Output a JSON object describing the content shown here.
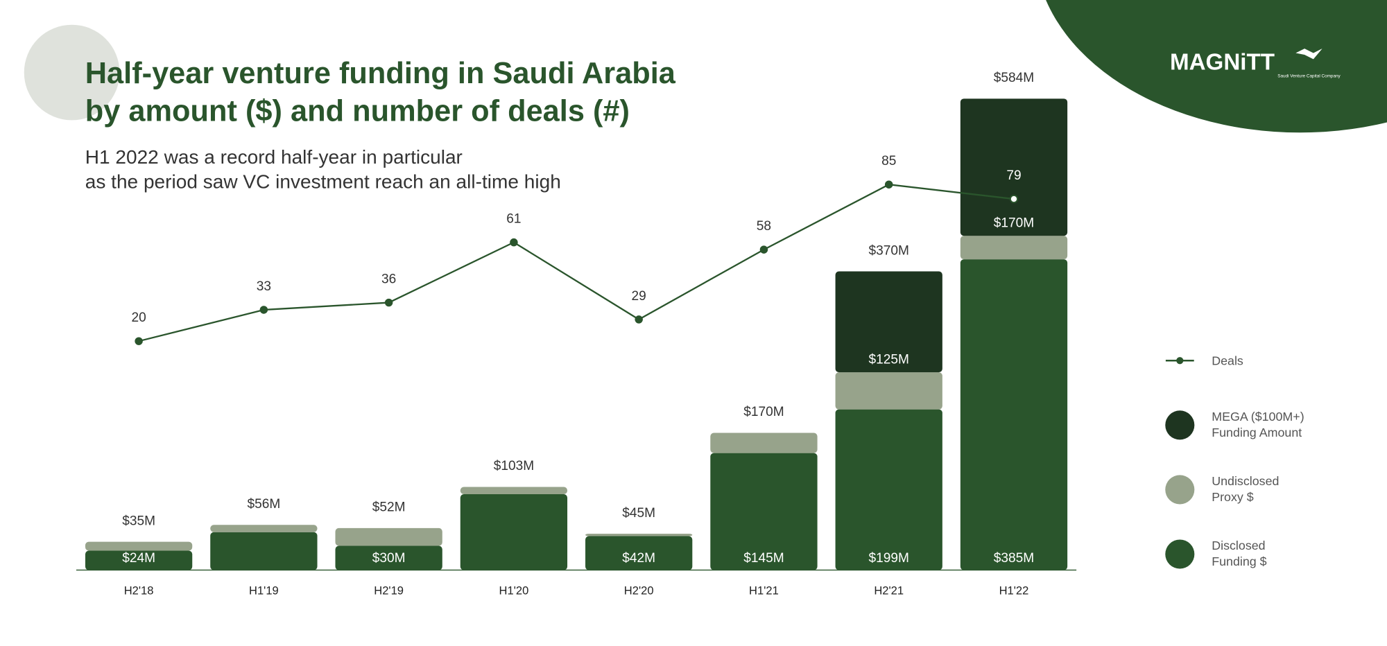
{
  "chart_data": {
    "type": "bar",
    "title": "Half-year venture funding in Saudi Arabia\nby amount ($) and number of deals (#)",
    "subtitle": "H1 2022 was a record half-year in particular\nas the period saw VC investment reach an all-time high",
    "logo": "MAGNiTT",
    "partner": "Saudi Venture Capital Company",
    "categories": [
      "H2'18",
      "H1'19",
      "H2'19",
      "H1'20",
      "H2'20",
      "H1'21",
      "H2'21",
      "H1'22"
    ],
    "series": [
      {
        "name": "Disclosed\nFunding $",
        "color": "#2a552c",
        "values": [
          24,
          47,
          30,
          94,
          42,
          145,
          199,
          385
        ],
        "value_labels": [
          "$24M",
          null,
          "$30M",
          null,
          "$42M",
          "$145M",
          "$199M",
          "$385M"
        ]
      },
      {
        "name": "Undisclosed\nProxy $",
        "color": "#97a38b",
        "values": [
          11,
          9,
          22,
          9,
          3,
          25,
          46,
          29
        ]
      },
      {
        "name": "MEGA ($100M+)\nFunding Amount",
        "color": "#1e3520",
        "values": [
          0,
          0,
          0,
          0,
          0,
          0,
          125,
          170
        ],
        "value_labels": [
          null,
          null,
          null,
          null,
          null,
          null,
          "$125M",
          "$170M"
        ]
      },
      {
        "name": "Deals",
        "type": "line",
        "axis": "y2",
        "color": "#2a552c",
        "values": [
          20,
          33,
          36,
          61,
          29,
          58,
          85,
          79
        ]
      }
    ],
    "totals": [
      35,
      56,
      52,
      103,
      45,
      170,
      370,
      584
    ],
    "total_labels": [
      "$35M",
      "$56M",
      "$52M",
      "$103M",
      "$45M",
      "$170M",
      "$370M",
      "$584M"
    ],
    "ylim": [
      0,
      600
    ],
    "y2lim": [
      -75,
      126
    ]
  }
}
